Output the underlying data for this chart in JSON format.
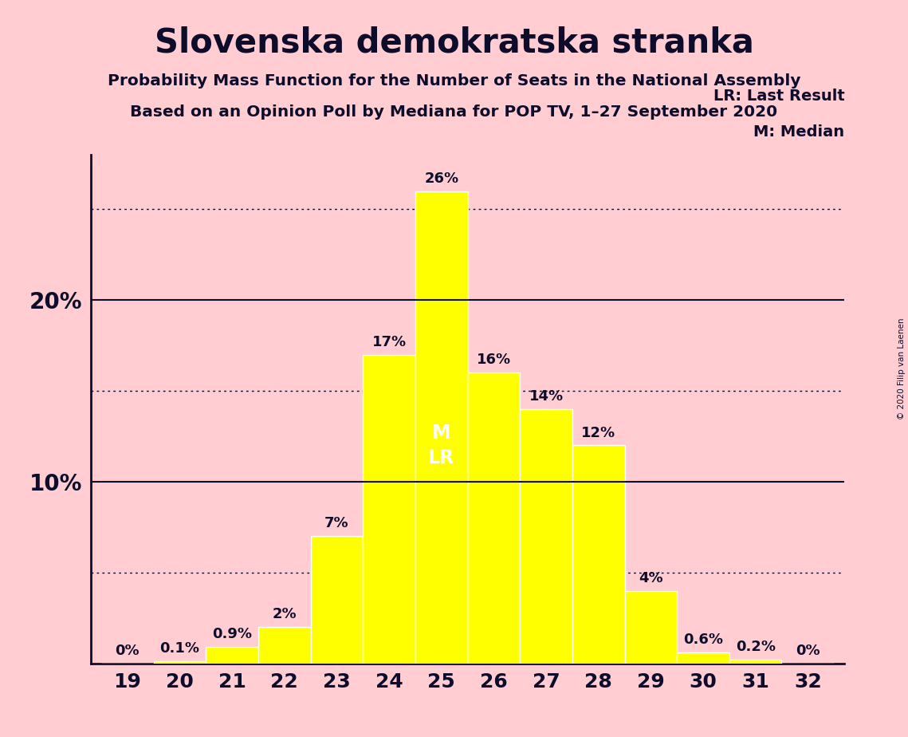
{
  "title": "Slovenska demokratska stranka",
  "subtitle1": "Probability Mass Function for the Number of Seats in the National Assembly",
  "subtitle2": "Based on an Opinion Poll by Mediana for POP TV, 1–27 September 2020",
  "copyright": "© 2020 Filip van Laenen",
  "categories": [
    19,
    20,
    21,
    22,
    23,
    24,
    25,
    26,
    27,
    28,
    29,
    30,
    31,
    32
  ],
  "values": [
    0.0,
    0.1,
    0.9,
    2.0,
    7.0,
    17.0,
    26.0,
    16.0,
    14.0,
    12.0,
    4.0,
    0.6,
    0.2,
    0.0
  ],
  "labels": [
    "0%",
    "0.1%",
    "0.9%",
    "2%",
    "7%",
    "17%",
    "26%",
    "16%",
    "14%",
    "12%",
    "4%",
    "0.6%",
    "0.2%",
    "0%"
  ],
  "bar_color": "#FFFF00",
  "bar_edge_color": "#FFFFFF",
  "background_color": "#FFCDD2",
  "text_color": "#0D0D2B",
  "median_seat": 25,
  "last_result_seat": 25,
  "legend_lr": "LR: Last Result",
  "legend_m": "M: Median",
  "dotted_lines": [
    5,
    15,
    25
  ],
  "solid_lines": [
    10,
    20
  ],
  "ylim": [
    0,
    28
  ],
  "xlim": [
    18.3,
    32.7
  ]
}
